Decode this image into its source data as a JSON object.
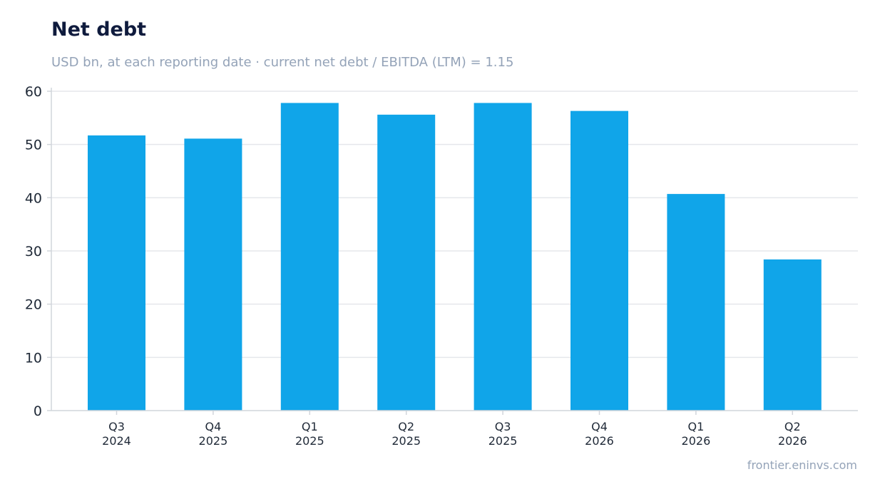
{
  "header": {
    "title": "Net debt",
    "subtitle": "USD bn, at each reporting date · current net debt / EBITDA (LTM) = 1.15"
  },
  "footer": {
    "source": "frontier.eninvs.com"
  },
  "chart_data": {
    "type": "bar",
    "title": "Net debt",
    "subtitle": "USD bn, at each reporting date · current net debt / EBITDA (LTM) = 1.15",
    "categories": [
      [
        "Q3",
        "2024"
      ],
      [
        "Q4",
        "2025"
      ],
      [
        "Q1",
        "2025"
      ],
      [
        "Q2",
        "2025"
      ],
      [
        "Q3",
        "2025"
      ],
      [
        "Q4",
        "2026"
      ],
      [
        "Q1",
        "2026"
      ],
      [
        "Q2",
        "2026"
      ]
    ],
    "values": [
      51.7,
      51.1,
      57.8,
      55.6,
      57.8,
      56.3,
      40.7,
      28.4
    ],
    "ylim": [
      0,
      60
    ],
    "yticks": [
      0,
      10,
      20,
      30,
      40,
      50,
      60
    ],
    "grid": true,
    "colors": {
      "bar": "#10a5e9",
      "grid": "#e5e7eb",
      "axis": "#d1d5db",
      "tick_text": "#1f2937"
    }
  }
}
